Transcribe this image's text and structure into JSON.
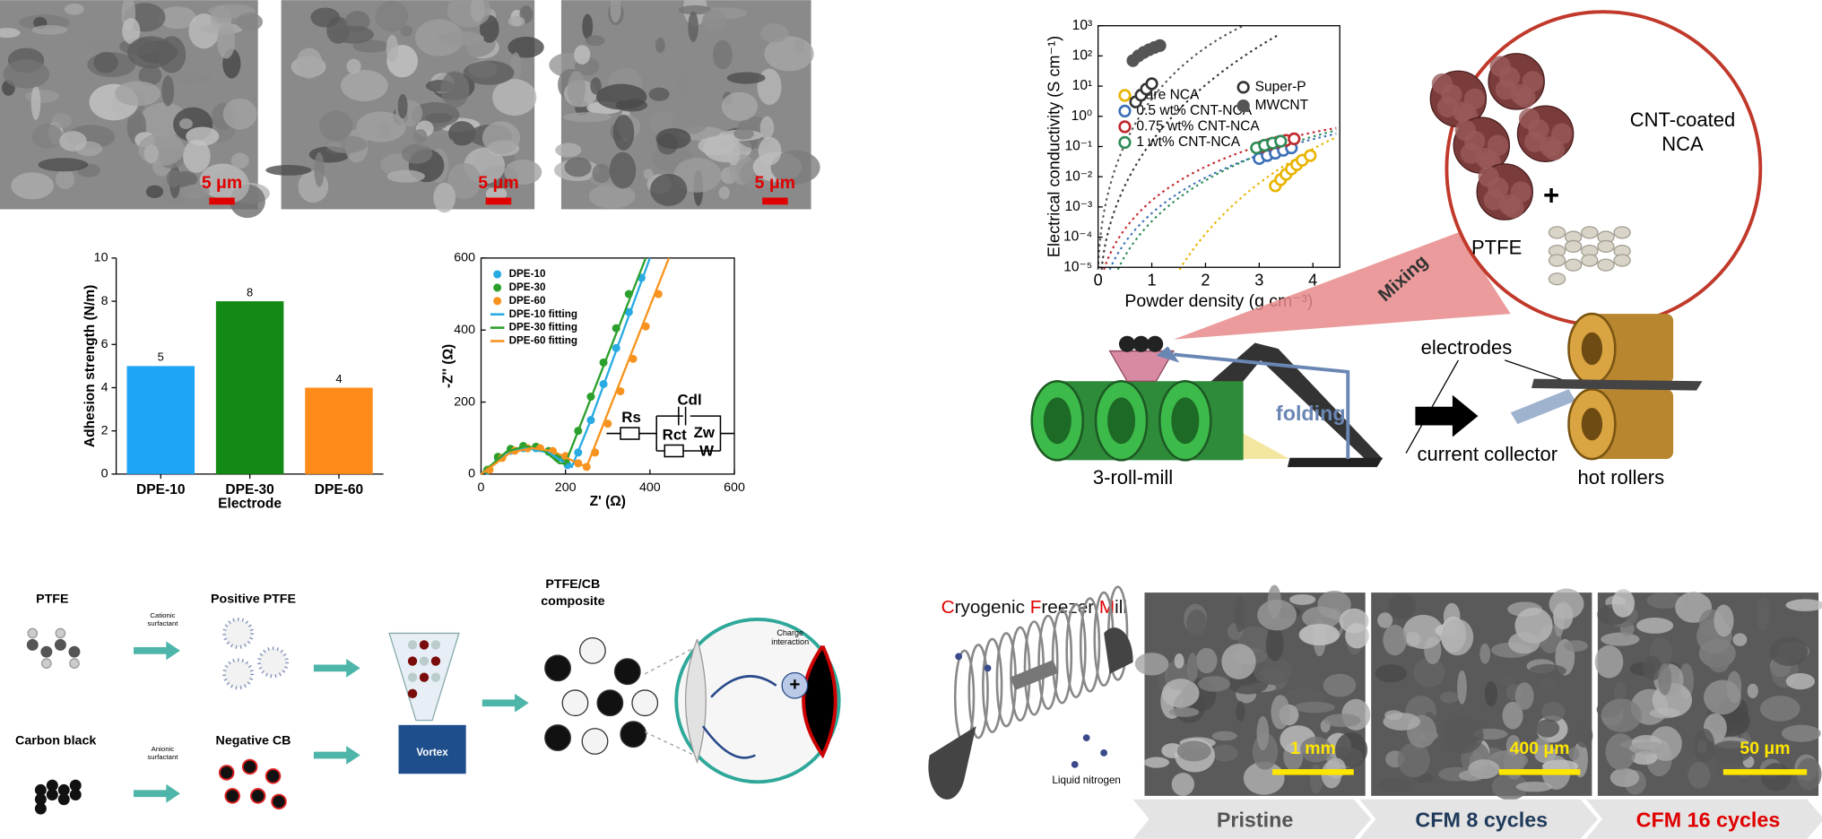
{
  "sem_top": {
    "scale_bars": [
      "5 μm",
      "5 μm",
      "5 μm"
    ]
  },
  "chart_data": [
    {
      "type": "bar",
      "categories": [
        "DPE-10",
        "DPE-30",
        "DPE-60"
      ],
      "values": [
        5,
        8,
        4
      ],
      "colors": [
        "#1ea5f5",
        "#138a13",
        "#ff8c1a"
      ],
      "ylabel": "Adhesion strength (N/m)",
      "xlabel": "Electrode",
      "ylim": [
        0,
        10
      ],
      "yticks": [
        0,
        2,
        4,
        6,
        8,
        10
      ]
    },
    {
      "type": "scatter",
      "xlabel": "Z' (Ω)",
      "ylabel": "-Z'' (Ω)",
      "xlim": [
        0,
        600
      ],
      "ylim": [
        0,
        600
      ],
      "xticks": [
        0,
        200,
        400,
        600
      ],
      "yticks": [
        0,
        200,
        400,
        600
      ],
      "series": [
        {
          "name": "DPE-10",
          "color": "#29abe2",
          "x": [
            15,
            40,
            70,
            100,
            130,
            160,
            185,
            205,
            230,
            260,
            290,
            320,
            350,
            380
          ],
          "y": [
            10,
            45,
            65,
            72,
            72,
            62,
            45,
            25,
            60,
            150,
            250,
            350,
            450,
            545
          ]
        },
        {
          "name": "DPE-30",
          "color": "#2ca02c",
          "x": [
            15,
            40,
            70,
            100,
            130,
            160,
            180,
            200,
            230,
            260,
            290,
            320,
            350
          ],
          "y": [
            12,
            48,
            70,
            78,
            76,
            64,
            45,
            35,
            120,
            215,
            310,
            405,
            500
          ]
        },
        {
          "name": "DPE-60",
          "color": "#f7931e",
          "x": [
            20,
            50,
            80,
            110,
            140,
            170,
            200,
            230,
            250,
            270,
            300,
            330,
            360,
            390,
            420
          ],
          "y": [
            12,
            45,
            65,
            72,
            72,
            64,
            50,
            30,
            20,
            60,
            140,
            230,
            320,
            410,
            500
          ]
        },
        {
          "name": "DPE-10 fitting",
          "color": "#29abe2",
          "mode": "line",
          "x": [
            0,
            60,
            110,
            160,
            200,
            215,
            260,
            400
          ],
          "y": [
            0,
            60,
            72,
            60,
            30,
            20,
            150,
            600
          ]
        },
        {
          "name": "DPE-30 fitting",
          "color": "#2ca02c",
          "mode": "line",
          "x": [
            0,
            60,
            105,
            150,
            185,
            200,
            390
          ],
          "y": [
            0,
            62,
            78,
            65,
            30,
            30,
            600
          ]
        },
        {
          "name": "DPE-60 fitting",
          "color": "#f7931e",
          "mode": "line",
          "x": [
            0,
            70,
            120,
            170,
            220,
            250,
            445
          ],
          "y": [
            0,
            60,
            72,
            64,
            35,
            20,
            600
          ]
        }
      ],
      "circuit_labels": [
        "Rs",
        "Cdl",
        "Rct",
        "Zw",
        "W"
      ]
    },
    {
      "type": "scatter",
      "log_y": true,
      "xlabel": "Powder density (g cm⁻³)",
      "ylabel": "Electrical conductivity (S cm⁻¹)",
      "xlim": [
        0,
        4.5
      ],
      "ylim": [
        1e-05,
        1000
      ],
      "xticks": [
        0,
        1,
        2,
        3,
        4
      ],
      "yticks": [
        {
          "value": 1e-05,
          "label": "10⁻⁵"
        },
        {
          "value": 0.0001,
          "label": "10⁻⁴"
        },
        {
          "value": 0.001,
          "label": "10⁻³"
        },
        {
          "value": 0.01,
          "label": "10⁻²"
        },
        {
          "value": 0.1,
          "label": "10⁻¹"
        },
        {
          "value": 1,
          "label": "10⁰"
        },
        {
          "value": 10,
          "label": "10¹"
        },
        {
          "value": 100,
          "label": "10²"
        },
        {
          "value": 1000,
          "label": "10³"
        }
      ],
      "series": [
        {
          "name": "Bare NCA",
          "color": "#e8b400",
          "marker": "open",
          "x": [
            3.3,
            3.4,
            3.5,
            3.6,
            3.7,
            3.8,
            3.95
          ],
          "y": [
            0.005,
            0.008,
            0.012,
            0.018,
            0.025,
            0.035,
            0.05
          ]
        },
        {
          "name": "0.5 wt% CNT-NCA",
          "color": "#3b6fb6",
          "marker": "open",
          "x": [
            3.0,
            3.15,
            3.3,
            3.45,
            3.6
          ],
          "y": [
            0.04,
            0.05,
            0.06,
            0.075,
            0.09
          ]
        },
        {
          "name": "0.75 wt% CNT-NCA",
          "color": "#c0282d",
          "marker": "open",
          "x": [
            3.05,
            3.2,
            3.35,
            3.5,
            3.65
          ],
          "y": [
            0.1,
            0.12,
            0.14,
            0.16,
            0.18
          ]
        },
        {
          "name": "1 wt% CNT-NCA",
          "color": "#2e8b57",
          "marker": "open",
          "x": [
            2.95,
            3.1,
            3.25,
            3.4
          ],
          "y": [
            0.09,
            0.11,
            0.13,
            0.15
          ]
        },
        {
          "name": "Super-P",
          "color": "#333333",
          "marker": "open",
          "x": [
            0.7,
            0.8,
            0.9,
            1.0
          ],
          "y": [
            3,
            5,
            8,
            12
          ]
        },
        {
          "name": "MWCNT",
          "color": "#555555",
          "marker": "filled",
          "x": [
            0.65,
            0.75,
            0.85,
            0.95,
            1.05,
            1.15
          ],
          "y": [
            70,
            100,
            130,
            160,
            190,
            220
          ]
        }
      ]
    }
  ],
  "roll_diagram": {
    "cnt_coated": "CNT-coated",
    "nca": "NCA",
    "plus": "+",
    "ptfe": "PTFE",
    "mixing": "Mixing",
    "electrodes": "electrodes",
    "folding": "folding",
    "current_collector": "current collector",
    "three_roll_mill": "3-roll-mill",
    "hot_rollers": "hot rollers"
  },
  "schematic": {
    "ptfe": "PTFE",
    "cationic": [
      "Cationic",
      "surfactant"
    ],
    "positive_ptfe": "Positive PTFE",
    "carbon_black": "Carbon black",
    "anionic": [
      "Anionic",
      "surfactant"
    ],
    "negative_cb": "Negative CB",
    "vortex": "Vortex",
    "composite": [
      "PTFE/CB",
      "composite"
    ],
    "charge_interaction": [
      "Charge",
      "interaction"
    ],
    "plus": "+"
  },
  "cfm": {
    "title": [
      "C",
      "ryogenic ",
      "F",
      "reezer ",
      "M",
      "ill"
    ],
    "liquid_nitrogen": "Liquid nitrogen",
    "scale_bars": [
      "1 mm",
      "400 μm",
      "50 μm"
    ],
    "stages": [
      "Pristine",
      "CFM 8 cycles",
      "CFM 16 cycles"
    ]
  }
}
